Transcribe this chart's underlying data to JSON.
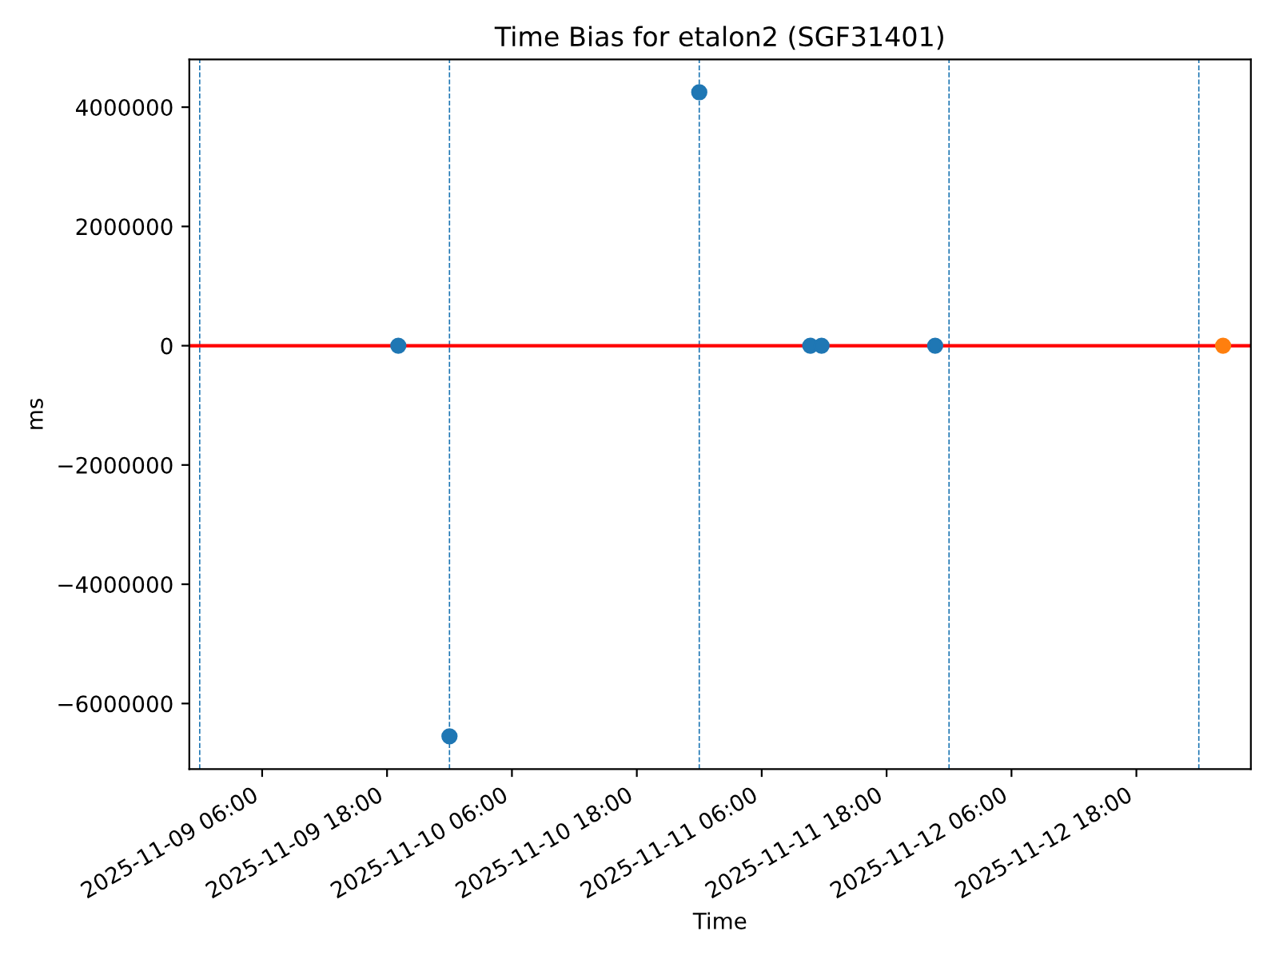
{
  "chart_data": {
    "type": "scatter",
    "title": "Time Bias for etalon2 (SGF31401)",
    "xlabel": "Time",
    "ylabel": "ms",
    "series": [
      {
        "color": "#1f77b4",
        "x": [
          "2025-11-09T19:05",
          "2025-11-10T00:00",
          "2025-11-11T00:00",
          "2025-11-11T10:40",
          "2025-11-11T11:45",
          "2025-11-11T22:40"
        ],
        "values": [
          0,
          -6550000,
          4250000,
          0,
          0,
          0
        ]
      },
      {
        "color": "#ff7f0e",
        "x": [
          "2025-11-13T02:20"
        ],
        "values": [
          0
        ]
      }
    ],
    "marker": "circle",
    "ref_lines": [
      {
        "axis": "y",
        "value": 0,
        "color": "#ff0000",
        "line_style": "solid"
      },
      {
        "axis": "x",
        "value": "2025-11-09T00:00",
        "color": "#1f77b4",
        "line_style": "dashed"
      },
      {
        "axis": "x",
        "value": "2025-11-10T00:00",
        "color": "#1f77b4",
        "line_style": "dashed"
      },
      {
        "axis": "x",
        "value": "2025-11-11T00:00",
        "color": "#1f77b4",
        "line_style": "dashed"
      },
      {
        "axis": "x",
        "value": "2025-11-12T00:00",
        "color": "#1f77b4",
        "line_style": "dashed"
      },
      {
        "axis": "x",
        "value": "2025-11-13T00:00",
        "color": "#1f77b4",
        "line_style": "dashed"
      }
    ],
    "xlim": [
      "2025-11-08T23:00",
      "2025-11-13T05:00"
    ],
    "xticks": [
      {
        "value": "2025-11-09T06:00",
        "label": "2025-11-09 06:00"
      },
      {
        "value": "2025-11-09T18:00",
        "label": "2025-11-09 18:00"
      },
      {
        "value": "2025-11-10T06:00",
        "label": "2025-11-10 06:00"
      },
      {
        "value": "2025-11-10T18:00",
        "label": "2025-11-10 18:00"
      },
      {
        "value": "2025-11-11T06:00",
        "label": "2025-11-11 06:00"
      },
      {
        "value": "2025-11-11T18:00",
        "label": "2025-11-11 18:00"
      },
      {
        "value": "2025-11-12T06:00",
        "label": "2025-11-12 06:00"
      },
      {
        "value": "2025-11-12T18:00",
        "label": "2025-11-12 18:00"
      }
    ],
    "ylim": [
      -7100000,
      4800000
    ],
    "yticks": [
      {
        "value": -6000000,
        "label": "−6000000"
      },
      {
        "value": -4000000,
        "label": "−4000000"
      },
      {
        "value": -2000000,
        "label": "−2000000"
      },
      0,
      2000000,
      4000000
    ],
    "grid": false
  }
}
